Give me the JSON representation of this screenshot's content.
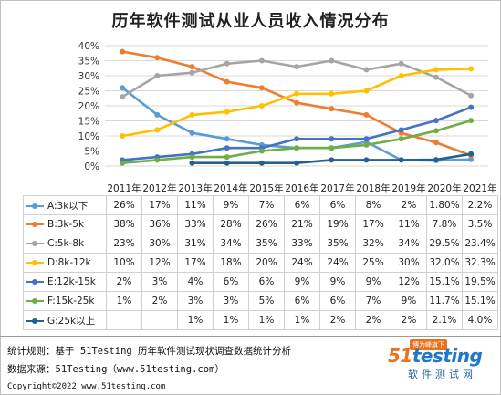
{
  "title": "历年软件测试从业人员收入情况分布",
  "chart_data": {
    "type": "line",
    "title": "历年软件测试从业人员收入情况分布",
    "categories": [
      "2011年",
      "2012年",
      "2013年",
      "2014年",
      "2015年",
      "2016年",
      "2017年",
      "2018年",
      "2019年",
      "2020年",
      "2021年"
    ],
    "ylim": [
      0,
      40
    ],
    "yticks": [
      "0%",
      "5%",
      "10%",
      "15%",
      "20%",
      "25%",
      "30%",
      "35%",
      "40%"
    ],
    "grid": "horizontal",
    "legend": "table-below",
    "series": [
      {
        "name": "A:3k以下",
        "color": "#5b9bd5",
        "values": [
          26,
          17,
          11,
          9,
          7,
          6,
          6,
          8,
          2,
          1.8,
          2.2
        ],
        "labels": [
          "26%",
          "17%",
          "11%",
          "9%",
          "7%",
          "6%",
          "6%",
          "8%",
          "2%",
          "1.80%",
          "2.2%"
        ]
      },
      {
        "name": "B:3k-5k",
        "color": "#ed7d31",
        "values": [
          38,
          36,
          33,
          28,
          26,
          21,
          19,
          17,
          11,
          7.8,
          3.5
        ],
        "labels": [
          "38%",
          "36%",
          "33%",
          "28%",
          "26%",
          "21%",
          "19%",
          "17%",
          "11%",
          "7.8%",
          "3.5%"
        ]
      },
      {
        "name": "C:5k-8k",
        "color": "#a5a5a5",
        "values": [
          23,
          30,
          31,
          34,
          35,
          33,
          35,
          32,
          34,
          29.5,
          23.4
        ],
        "labels": [
          "23%",
          "30%",
          "31%",
          "34%",
          "35%",
          "33%",
          "35%",
          "32%",
          "34%",
          "29.5%",
          "23.4%"
        ]
      },
      {
        "name": "D:8k-12k",
        "color": "#ffc000",
        "values": [
          10,
          12,
          17,
          18,
          20,
          24,
          24,
          25,
          30,
          32,
          32.3
        ],
        "labels": [
          "10%",
          "12%",
          "17%",
          "18%",
          "20%",
          "24%",
          "24%",
          "25%",
          "30%",
          "32.0%",
          "32.3%"
        ]
      },
      {
        "name": "E:12k-15k",
        "color": "#4472c4",
        "values": [
          2,
          3,
          4,
          6,
          6,
          9,
          9,
          9,
          12,
          15.1,
          19.5
        ],
        "labels": [
          "2%",
          "3%",
          "4%",
          "6%",
          "6%",
          "9%",
          "9%",
          "9%",
          "12%",
          "15.1%",
          "19.5%"
        ]
      },
      {
        "name": "F:15k-25k",
        "color": "#70ad47",
        "values": [
          1,
          2,
          3,
          3,
          5,
          6,
          6,
          7,
          9,
          11.7,
          15.1
        ],
        "labels": [
          "1%",
          "2%",
          "3%",
          "3%",
          "5%",
          "6%",
          "6%",
          "7%",
          "9%",
          "11.7%",
          "15.1%"
        ]
      },
      {
        "name": "G:25k以上",
        "color": "#255e91",
        "values": [
          null,
          null,
          1,
          1,
          1,
          1,
          2,
          2,
          2,
          2.1,
          4.0
        ],
        "labels": [
          "",
          "",
          "1%",
          "1%",
          "1%",
          "1%",
          "2%",
          "2%",
          "2%",
          "2.1%",
          "4.0%"
        ]
      }
    ]
  },
  "footer": {
    "rule": "统计规则：基于 51Testing 历年软件测试现状调查数据统计分析",
    "source": "数据来源：51Testing（www.51testing.com）",
    "copyright": "Copyright©2022 www.51testing.com"
  },
  "logo": {
    "badge": "博为峰旗下",
    "word_a": "51",
    "word_b": "testing",
    "cn": "软件测试网",
    "icon": "51testing-logo"
  }
}
